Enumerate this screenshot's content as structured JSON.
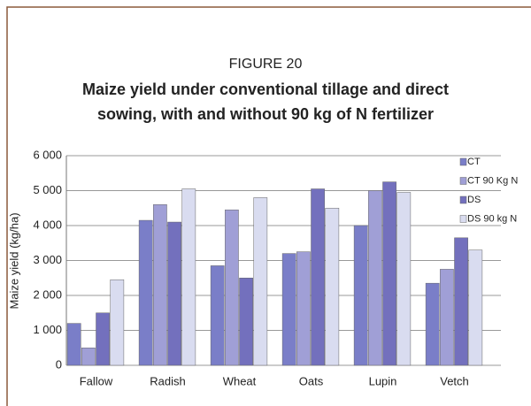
{
  "chart_data": {
    "type": "bar",
    "title": "FIGURE 20",
    "subtitle": [
      "Maize yield under conventional tillage and direct",
      "sowing, with and without 90 kg of N fertilizer"
    ],
    "y_label": "Maize yield (kg/ha)",
    "categories": [
      "Fallow",
      "Radish",
      "Wheat",
      "Oats",
      "Lupin",
      "Vetch"
    ],
    "series": [
      {
        "name": "CT",
        "color": "#7a7ec8",
        "values": [
          1200,
          4150,
          2850,
          3200,
          4000,
          2350
        ]
      },
      {
        "name": "CT 90 Kg N",
        "color": "#a09fd6",
        "values": [
          500,
          4600,
          4450,
          3250,
          5000,
          2750
        ]
      },
      {
        "name": "DS",
        "color": "#7370bd",
        "values": [
          1500,
          4100,
          2500,
          5050,
          5250,
          3650
        ]
      },
      {
        "name": "DS 90 kg N",
        "color": "#d9dcf0",
        "values": [
          2450,
          5050,
          4800,
          4500,
          4950,
          3300
        ]
      }
    ],
    "ylim": [
      0,
      6000
    ],
    "yticks": [
      0,
      {
        "value": 1000,
        "label": "1 000"
      },
      {
        "value": 2000,
        "label": "2 000"
      },
      {
        "value": 3000,
        "label": "3 000"
      },
      {
        "value": 4000,
        "label": "4 000"
      },
      {
        "value": 5000,
        "label": "5 000"
      },
      {
        "value": 6000,
        "label": "6 000"
      }
    ],
    "grid": true,
    "legend": "top-right"
  }
}
